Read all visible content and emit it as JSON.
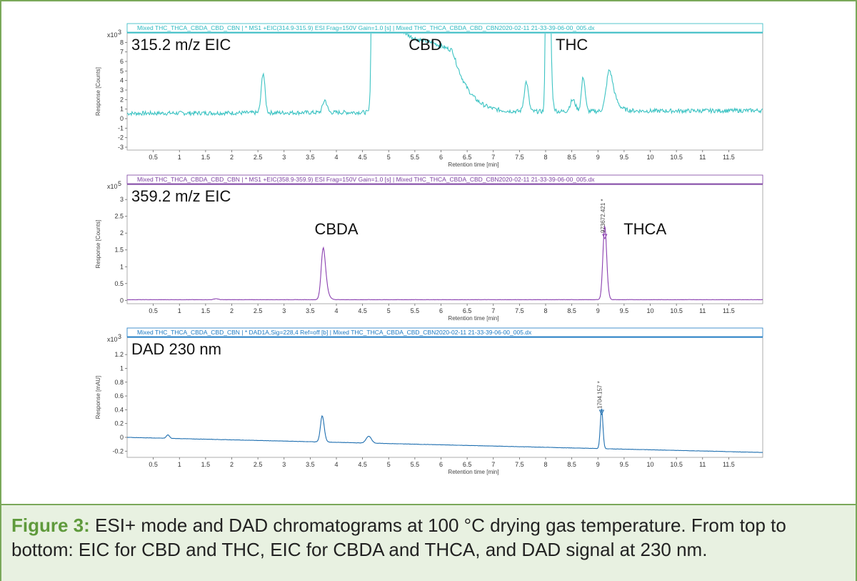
{
  "caption": {
    "label": "Figure 3:",
    "text": " ESI+ mode and DAD chromatograms at 100 °C drying gas temperature. From top to bottom: EIC for CBD and THC, EIC for CBDA and THCA, and DAD signal at 230 nm."
  },
  "chart_data": [
    {
      "type": "line",
      "header": "Mixed THC_THCA_CBDA_CBD_CBN | * MS1 +EIC(314.9-315.9) ESI Frag=150V Gain=1.0 [s] | Mixed THC_THCA_CBDA_CBD_CBN2020-02-11 21-33-39-06-00_005.dx",
      "header_color": "#2bb8c0",
      "line_color": "#3cc3c3",
      "title": "315.2 m/z EIC",
      "ylabel": "Response [Counts]",
      "xlabel": "Retention time [min]",
      "scale_label": "x10",
      "scale_exp": "3",
      "xlim": [
        0,
        12.15
      ],
      "ylim": [
        -3.3,
        9.0
      ],
      "xticks": [
        "0.5",
        "1",
        "1.5",
        "2",
        "2.5",
        "3",
        "3.5",
        "4",
        "4.5",
        "5",
        "5.5",
        "6",
        "6.5",
        "7",
        "7.5",
        "8",
        "8.5",
        "9",
        "9.5",
        "10",
        "10.5",
        "11",
        "11.5"
      ],
      "yticks": [
        "-3",
        "-2",
        "-1",
        "0",
        "1",
        "2",
        "3",
        "4",
        "5",
        "6",
        "7",
        "8"
      ],
      "baseline": 0.55,
      "noise": 0.22,
      "drift": 0.025,
      "peaks": [
        {
          "x": 2.6,
          "height": 4.2,
          "w": 0.035
        },
        {
          "x": 3.78,
          "height": 1.3,
          "w": 0.04
        },
        {
          "x": 4.72,
          "height": 60,
          "w": 0.03,
          "tail": 0.45
        },
        {
          "x": 5.8,
          "height": 0.6,
          "w": 0.3
        },
        {
          "x": 7.63,
          "height": 3.1,
          "w": 0.04
        },
        {
          "x": 8.04,
          "height": 60,
          "w": 0.025,
          "tail": 0.12
        },
        {
          "x": 8.52,
          "height": 1.2,
          "w": 0.05
        },
        {
          "x": 8.72,
          "height": 3.6,
          "w": 0.035
        },
        {
          "x": 9.22,
          "height": 4.3,
          "w": 0.06,
          "tail": 0.2
        }
      ],
      "annotations": [
        {
          "text": "CBD",
          "x": 5.7
        },
        {
          "text": "THC",
          "x": 8.5
        }
      ]
    },
    {
      "type": "line",
      "header": "Mixed THC_THCA_CBDA_CBD_CBN | * MS1 +EIC(358.9-359.9) ESI Frag=150V Gain=1.0 [s] | Mixed THC_THCA_CBDA_CBD_CBN2020-02-11 21-33-39-06-00_005.dx",
      "header_color": "#7b3fa0",
      "line_color": "#8a3fb0",
      "title": "359.2 m/z EIC",
      "ylabel": "Response [Counts]",
      "xlabel": "Retention time [min]",
      "scale_label": "x10",
      "scale_exp": "5",
      "xlim": [
        0,
        12.15
      ],
      "ylim": [
        -0.1,
        3.45
      ],
      "xticks": [
        "0.5",
        "1",
        "1.5",
        "2",
        "2.5",
        "3",
        "3.5",
        "4",
        "4.5",
        "5",
        "5.5",
        "6",
        "6.5",
        "7",
        "7.5",
        "8",
        "8.5",
        "9",
        "9.5",
        "10",
        "10.5",
        "11",
        "11.5"
      ],
      "yticks": [
        "0",
        "0.5",
        "1",
        "1.5",
        "2",
        "2.5",
        "3"
      ],
      "baseline": 0.02,
      "noise": 0.004,
      "drift": 0.0,
      "peaks": [
        {
          "x": 1.7,
          "height": 0.03,
          "w": 0.04
        },
        {
          "x": 3.75,
          "height": 1.55,
          "w": 0.04,
          "tail": 0.12
        },
        {
          "x": 9.13,
          "height": 2.2,
          "w": 0.035,
          "tail": 0.04
        }
      ],
      "annotations": [
        {
          "text": "CBDA",
          "x": 4.0
        },
        {
          "text": "THCA",
          "x": 9.9
        }
      ],
      "peak_label": "973672.421 *",
      "peak_label_x": 9.13
    },
    {
      "type": "line",
      "header": "Mixed THC_THCA_CBDA_CBD_CBN | * DAD1A,Sig=228,4  Ref=off [b] | Mixed THC_THCA_CBDA_CBD_CBN2020-02-11 21-33-39-06-00_005.dx",
      "header_color": "#1a78c2",
      "line_color": "#1f6fb0",
      "title": "DAD 230 nm",
      "ylabel": "Response [mAU]",
      "xlabel": "Retention time [min]",
      "scale_label": "x10",
      "scale_exp": "3",
      "xlim": [
        0,
        12.15
      ],
      "ylim": [
        -0.29,
        1.45
      ],
      "xticks": [
        "0.5",
        "1",
        "1.5",
        "2",
        "2.5",
        "3",
        "3.5",
        "4",
        "4.5",
        "5",
        "5.5",
        "6",
        "6.5",
        "7",
        "7.5",
        "8",
        "8.5",
        "9",
        "9.5",
        "10",
        "10.5",
        "11",
        "11.5"
      ],
      "yticks": [
        "-0.2",
        "0",
        "0.2",
        "0.4",
        "0.6",
        "0.8",
        "1",
        "1.2"
      ],
      "baseline": 0.0,
      "noise": 0.002,
      "drift": -0.018,
      "peaks": [
        {
          "x": 0.78,
          "height": 0.05,
          "w": 0.03
        },
        {
          "x": 3.73,
          "height": 0.38,
          "w": 0.035,
          "tail": 0.04
        },
        {
          "x": 4.62,
          "height": 0.1,
          "w": 0.05
        },
        {
          "x": 9.07,
          "height": 0.58,
          "w": 0.025
        }
      ],
      "annotations": [],
      "peak_label": "1704.157 *",
      "peak_label_x": 9.07
    }
  ]
}
